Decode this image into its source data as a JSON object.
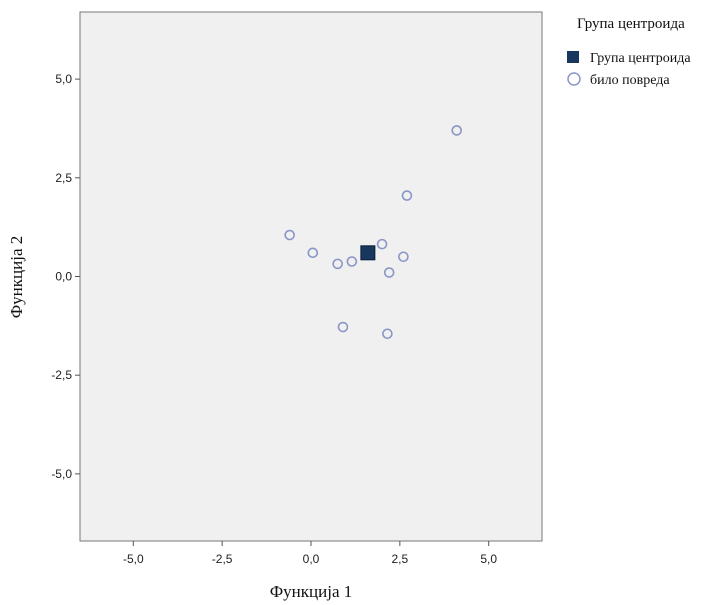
{
  "chart_data": {
    "type": "scatter",
    "xlabel": "Функција 1",
    "ylabel": "Функција 2",
    "xlim": [
      -6.5,
      6.5
    ],
    "ylim": [
      -6.7,
      6.7
    ],
    "x_ticks": [
      -5.0,
      -2.5,
      0.0,
      2.5,
      5.0
    ],
    "y_ticks": [
      -5.0,
      -2.5,
      0.0,
      2.5,
      5.0
    ],
    "x_tick_labels": [
      "-5,0",
      "-2,5",
      "0,0",
      "2,5",
      "5,0"
    ],
    "y_tick_labels": [
      "-5,0",
      "-2,5",
      "0,0",
      "2,5",
      "5,0"
    ],
    "grid": false,
    "plot_background": "#f0f0f0",
    "legend_position": "right",
    "legend_title": "Група центроида",
    "series": [
      {
        "name": "Група центроида",
        "marker": "square",
        "color": "#17375e",
        "points": [
          {
            "x": 1.6,
            "y": 0.6
          }
        ]
      },
      {
        "name": "било повреда",
        "marker": "open-circle",
        "color": "#8a96c7",
        "points": [
          {
            "x": 4.1,
            "y": 3.7
          },
          {
            "x": 2.7,
            "y": 2.05
          },
          {
            "x": -0.6,
            "y": 1.05
          },
          {
            "x": 0.05,
            "y": 0.6
          },
          {
            "x": 0.75,
            "y": 0.32
          },
          {
            "x": 1.15,
            "y": 0.38
          },
          {
            "x": 2.0,
            "y": 0.82
          },
          {
            "x": 2.6,
            "y": 0.5
          },
          {
            "x": 2.2,
            "y": 0.1
          },
          {
            "x": 0.9,
            "y": -1.28
          },
          {
            "x": 2.15,
            "y": -1.45
          }
        ]
      }
    ]
  }
}
